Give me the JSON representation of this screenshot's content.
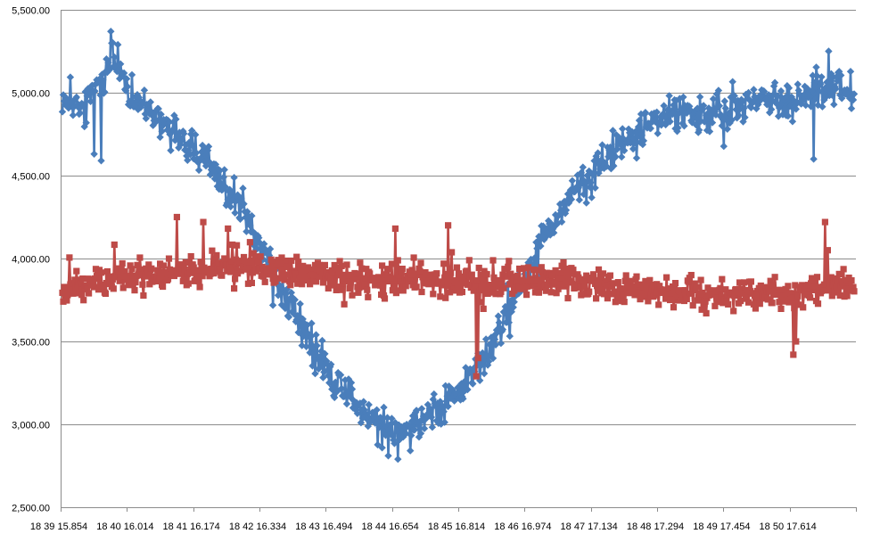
{
  "chart_data": {
    "type": "line",
    "title": "",
    "xlabel": "",
    "ylabel": "",
    "ylim": [
      2500,
      5500
    ],
    "y_ticks": [
      2500,
      3000,
      3500,
      4000,
      4500,
      5000,
      5500
    ],
    "y_tick_labels": [
      "2,500.00",
      "3,000.00",
      "3,500.00",
      "4,000.00",
      "4,500.00",
      "5,000.00",
      "5,500.00"
    ],
    "x_tick_labels": [
      "18 39 15.854",
      "18 40 16.014",
      "18 41 16.174",
      "18 42 16.334",
      "18 43 16.494",
      "18 44 16.654",
      "18 45 16.814",
      "18 46 16.974",
      "18 47 17.134",
      "18 48 17.294",
      "18 49 17.454",
      "18 50 17.614"
    ],
    "grid": true,
    "legend": "none",
    "point_count": 900,
    "series": [
      {
        "color": "#4a7ebb",
        "marker": "diamond",
        "keypoints": [
          [
            0,
            4950
          ],
          [
            25,
            4900
          ],
          [
            50,
            5100
          ],
          [
            60,
            5200
          ],
          [
            80,
            4950
          ],
          [
            100,
            4900
          ],
          [
            130,
            4750
          ],
          [
            160,
            4600
          ],
          [
            190,
            4400
          ],
          [
            220,
            4150
          ],
          [
            250,
            3800
          ],
          [
            270,
            3600
          ],
          [
            300,
            3350
          ],
          [
            330,
            3150
          ],
          [
            360,
            3000
          ],
          [
            380,
            2930
          ],
          [
            400,
            3020
          ],
          [
            430,
            3100
          ],
          [
            460,
            3250
          ],
          [
            490,
            3500
          ],
          [
            510,
            3700
          ],
          [
            530,
            3900
          ],
          [
            550,
            4150
          ],
          [
            575,
            4350
          ],
          [
            600,
            4500
          ],
          [
            625,
            4650
          ],
          [
            655,
            4750
          ],
          [
            680,
            4850
          ],
          [
            705,
            4900
          ],
          [
            730,
            4850
          ],
          [
            760,
            4900
          ],
          [
            790,
            4950
          ],
          [
            820,
            4950
          ],
          [
            850,
            5000
          ],
          [
            875,
            5050
          ],
          [
            900,
            5000
          ]
        ],
        "outliers": [
          [
            55,
            5370
          ],
          [
            63,
            5290
          ],
          [
            36,
            4630
          ],
          [
            44,
            4590
          ],
          [
            370,
            2810
          ],
          [
            381,
            2790
          ],
          [
            465,
            3250
          ],
          [
            853,
            4600
          ],
          [
            870,
            5250
          ]
        ]
      },
      {
        "color": "#be4b48",
        "marker": "square",
        "keypoints": [
          [
            0,
            3800
          ],
          [
            60,
            3880
          ],
          [
            120,
            3900
          ],
          [
            200,
            3950
          ],
          [
            260,
            3920
          ],
          [
            320,
            3880
          ],
          [
            380,
            3880
          ],
          [
            440,
            3880
          ],
          [
            480,
            3860
          ],
          [
            520,
            3870
          ],
          [
            560,
            3860
          ],
          [
            600,
            3840
          ],
          [
            640,
            3820
          ],
          [
            700,
            3800
          ],
          [
            760,
            3780
          ],
          [
            800,
            3780
          ],
          [
            840,
            3780
          ],
          [
            870,
            3850
          ],
          [
            900,
            3830
          ]
        ],
        "outliers": [
          [
            130,
            4250
          ],
          [
            160,
            4220
          ],
          [
            188,
            4180
          ],
          [
            378,
            4180
          ],
          [
            438,
            4200
          ],
          [
            470,
            3290
          ],
          [
            472,
            3400
          ],
          [
            830,
            3420
          ],
          [
            833,
            3500
          ],
          [
            866,
            4220
          ],
          [
            869,
            4050
          ]
        ]
      }
    ]
  }
}
